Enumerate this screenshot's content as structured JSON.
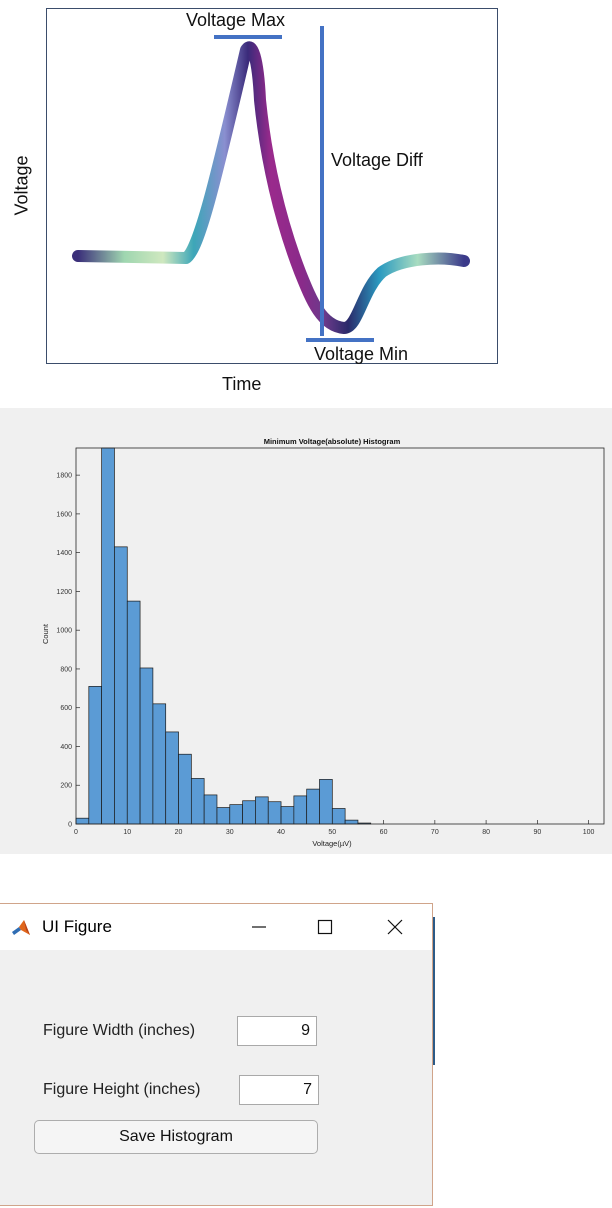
{
  "diagram": {
    "y_label": "Voltage",
    "x_label": "Time",
    "annotations": {
      "max": "Voltage Max",
      "diff": "Voltage Diff",
      "min": "Voltage Min"
    },
    "colors": {
      "frame": "#3b4d6b",
      "marker": "#4472c4"
    }
  },
  "chart_data": {
    "type": "bar",
    "title": "Minimum Voltage(absolute) Histogram",
    "xlabel": "Voltage(µV)",
    "ylabel": "Count",
    "xlim": [
      0,
      103
    ],
    "ylim": [
      0,
      1940
    ],
    "bin_width": 2.5,
    "bin_start": 0,
    "values": [
      30,
      710,
      1940,
      1430,
      1150,
      805,
      620,
      475,
      360,
      235,
      150,
      85,
      100,
      120,
      140,
      115,
      90,
      145,
      180,
      230,
      80,
      20,
      5
    ],
    "x_ticks": [
      0,
      10,
      20,
      30,
      40,
      50,
      60,
      70,
      80,
      90,
      100
    ],
    "y_ticks": [
      0,
      200,
      400,
      600,
      800,
      1000,
      1200,
      1400,
      1600,
      1800
    ],
    "bar_color": "#5b9bd5",
    "edge_color": "#1a1a1a"
  },
  "window": {
    "title": "UI Figure",
    "fields": [
      {
        "label": "Figure Width (inches)",
        "value": "9"
      },
      {
        "label": "Figure Height (inches)",
        "value": "7"
      }
    ],
    "save_label": "Save Histogram"
  }
}
